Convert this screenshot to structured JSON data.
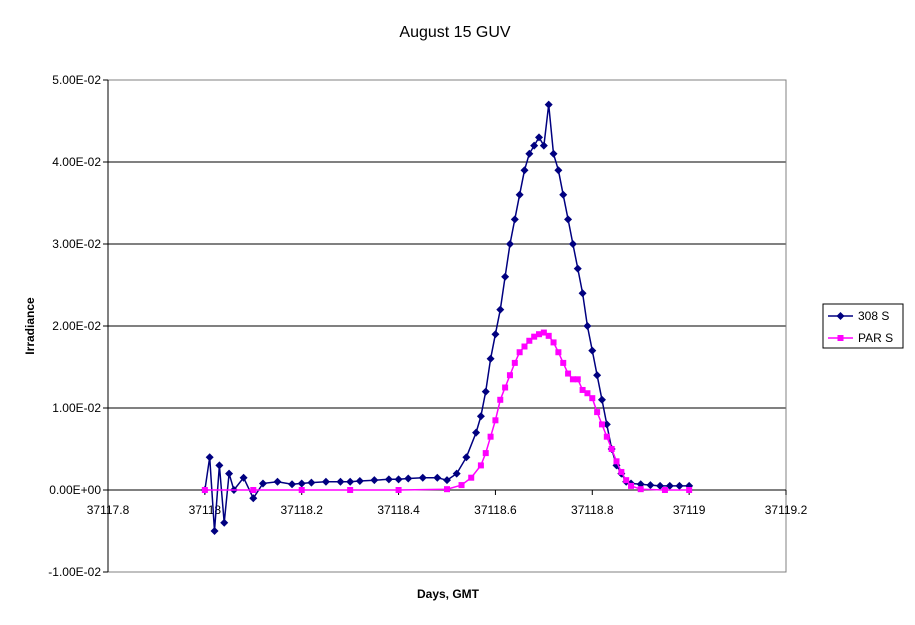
{
  "chart_data": {
    "type": "scatter",
    "title": "August 15 GUV",
    "xlabel": "Days, GMT",
    "ylabel": "Irradiance",
    "xlim": [
      37117.8,
      37119.2
    ],
    "ylim": [
      -0.01,
      0.05
    ],
    "x_ticks": [
      37117.8,
      37118,
      37118.2,
      37118.4,
      37118.6,
      37118.8,
      37119,
      37119.2
    ],
    "x_tick_labels": [
      "37117.8",
      "37118",
      "37118.2",
      "37118.4",
      "37118.6",
      "37118.8",
      "37119",
      "37119.2"
    ],
    "y_ticks": [
      -0.01,
      0,
      0.01,
      0.02,
      0.03,
      0.04,
      0.05
    ],
    "y_tick_labels": [
      "-1.00E-02",
      "0.00E+00",
      "1.00E-02",
      "2.00E-02",
      "3.00E-02",
      "4.00E-02",
      "5.00E-02"
    ],
    "grid": "horizontal",
    "legend_position": "right",
    "series": [
      {
        "name": "308 S",
        "color": "#000080",
        "marker": "diamond",
        "x": [
          37118.0,
          37118.01,
          37118.02,
          37118.03,
          37118.04,
          37118.05,
          37118.06,
          37118.08,
          37118.1,
          37118.12,
          37118.15,
          37118.18,
          37118.2,
          37118.22,
          37118.25,
          37118.28,
          37118.3,
          37118.32,
          37118.35,
          37118.38,
          37118.4,
          37118.42,
          37118.45,
          37118.48,
          37118.5,
          37118.52,
          37118.54,
          37118.56,
          37118.57,
          37118.58,
          37118.59,
          37118.6,
          37118.61,
          37118.62,
          37118.63,
          37118.64,
          37118.65,
          37118.66,
          37118.67,
          37118.68,
          37118.69,
          37118.7,
          37118.71,
          37118.72,
          37118.73,
          37118.74,
          37118.75,
          37118.76,
          37118.77,
          37118.78,
          37118.79,
          37118.8,
          37118.81,
          37118.82,
          37118.83,
          37118.84,
          37118.85,
          37118.86,
          37118.87,
          37118.88,
          37118.9,
          37118.92,
          37118.94,
          37118.96,
          37118.98,
          37119.0
        ],
        "y": [
          0.0,
          0.004,
          -0.005,
          0.003,
          -0.004,
          0.002,
          0.0,
          0.0015,
          -0.001,
          0.0008,
          0.001,
          0.0007,
          0.0008,
          0.0009,
          0.001,
          0.001,
          0.001,
          0.0011,
          0.0012,
          0.0013,
          0.0013,
          0.0014,
          0.0015,
          0.0015,
          0.0012,
          0.002,
          0.004,
          0.007,
          0.009,
          0.012,
          0.016,
          0.019,
          0.022,
          0.026,
          0.03,
          0.033,
          0.036,
          0.039,
          0.041,
          0.042,
          0.043,
          0.042,
          0.047,
          0.041,
          0.039,
          0.036,
          0.033,
          0.03,
          0.027,
          0.024,
          0.02,
          0.017,
          0.014,
          0.011,
          0.008,
          0.005,
          0.003,
          0.002,
          0.001,
          0.0008,
          0.0007,
          0.0006,
          0.0005,
          0.0005,
          0.0005,
          0.0005
        ]
      },
      {
        "name": "PAR S",
        "color": "#FF00FF",
        "marker": "square",
        "x": [
          37118.0,
          37118.1,
          37118.2,
          37118.3,
          37118.4,
          37118.5,
          37118.53,
          37118.55,
          37118.57,
          37118.58,
          37118.59,
          37118.6,
          37118.61,
          37118.62,
          37118.63,
          37118.64,
          37118.65,
          37118.66,
          37118.67,
          37118.68,
          37118.69,
          37118.7,
          37118.71,
          37118.72,
          37118.73,
          37118.74,
          37118.75,
          37118.76,
          37118.77,
          37118.78,
          37118.79,
          37118.8,
          37118.81,
          37118.82,
          37118.83,
          37118.84,
          37118.85,
          37118.86,
          37118.87,
          37118.88,
          37118.9,
          37118.95,
          37119.0
        ],
        "y": [
          0.0,
          0.0,
          0.0,
          0.0,
          0.0,
          0.0001,
          0.0006,
          0.0015,
          0.003,
          0.0045,
          0.0065,
          0.0085,
          0.011,
          0.0125,
          0.014,
          0.0155,
          0.0168,
          0.0175,
          0.0182,
          0.0187,
          0.019,
          0.0192,
          0.0188,
          0.018,
          0.0168,
          0.0155,
          0.0142,
          0.0135,
          0.0135,
          0.0122,
          0.0118,
          0.0112,
          0.0095,
          0.008,
          0.0065,
          0.005,
          0.0035,
          0.0022,
          0.0012,
          0.0005,
          0.0001,
          0.0,
          0.0
        ]
      }
    ]
  }
}
